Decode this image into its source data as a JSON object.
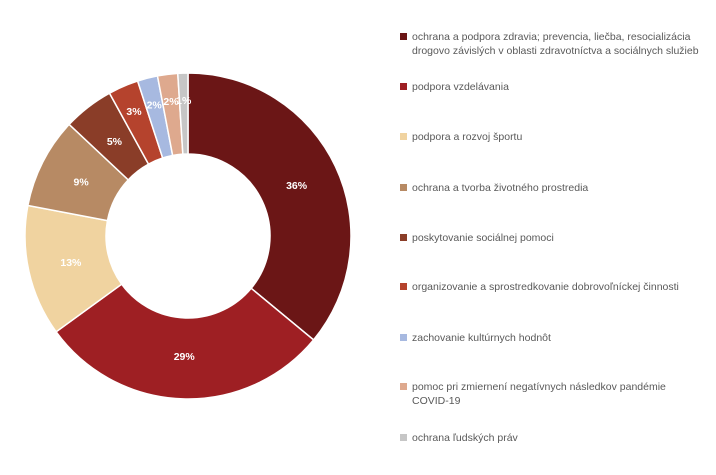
{
  "chart_data": {
    "type": "pie",
    "subtype": "donut",
    "categories": [
      "ochrana a podpora zdravia; prevencia, liečba, resocializácia drogovo závislých v oblasti zdravotníctva a sociálnych služieb",
      "podpora vzdelávania",
      "podpora a rozvoj športu",
      "ochrana a tvorba životného prostredia",
      "poskytovanie sociálnej pomoci",
      "organizovanie a sprostredkovanie dobrovoľníckej činnosti",
      "zachovanie kultúrnych hodnôt",
      "pomoc pri zmiernení negatívnych následkov pandémie COVID-19",
      "ochrana ľudských práv"
    ],
    "values": [
      36,
      29,
      13,
      9,
      5,
      3,
      2,
      2,
      1
    ],
    "labels": [
      "36%",
      "29%",
      "13%",
      "9%",
      "5%",
      "3%",
      "2%",
      "2%",
      "1%"
    ],
    "colors": [
      "#6b1616",
      "#9e1f23",
      "#f0d3a0",
      "#b78a64",
      "#8a3d28",
      "#b5432d",
      "#a7b9e0",
      "#dea98e",
      "#c6c6c6"
    ],
    "legend_position": "right"
  }
}
